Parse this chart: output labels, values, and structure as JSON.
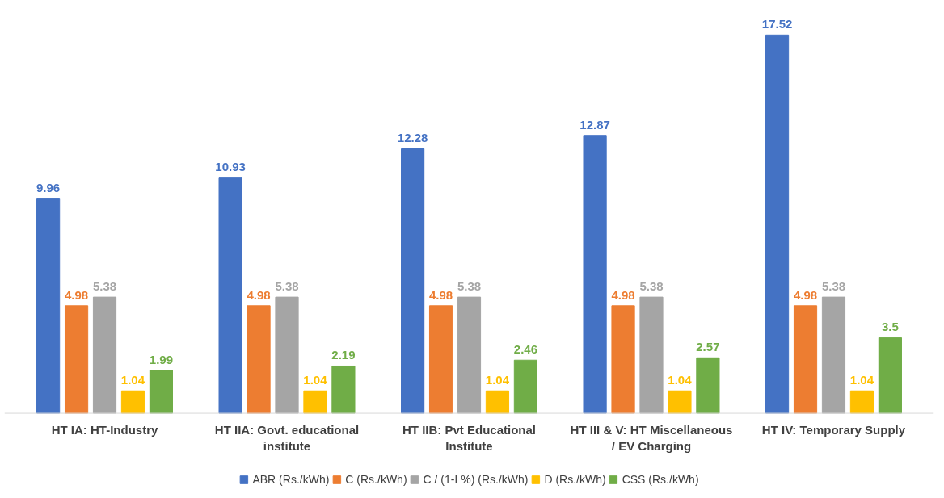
{
  "chart_data": {
    "type": "bar",
    "categories": [
      "HT IA: HT-Industry",
      "HT IIA: Govt. educational institute",
      "HT IIB: Pvt Educational Institute",
      "HT III & V: HT Miscellaneous / EV Charging",
      "HT IV: Temporary Supply"
    ],
    "series": [
      {
        "name": "ABR (Rs./kWh)",
        "color": "#4472c4",
        "values": [
          9.96,
          10.93,
          12.28,
          12.87,
          17.52
        ]
      },
      {
        "name": "C (Rs./kWh)",
        "color": "#ed7d31",
        "values": [
          4.98,
          4.98,
          4.98,
          4.98,
          4.98
        ]
      },
      {
        "name": "C / (1-L%) (Rs./kWh)",
        "color": "#a5a5a5",
        "values": [
          5.38,
          5.38,
          5.38,
          5.38,
          5.38
        ]
      },
      {
        "name": "D (Rs./kWh)",
        "color": "#ffc000",
        "values": [
          1.04,
          1.04,
          1.04,
          1.04,
          1.04
        ]
      },
      {
        "name": "CSS (Rs./kWh)",
        "color": "#70ad47",
        "values": [
          1.99,
          2.19,
          2.46,
          2.57,
          3.5
        ]
      }
    ],
    "data_labels": true,
    "legend": "bottom",
    "grid": false
  }
}
